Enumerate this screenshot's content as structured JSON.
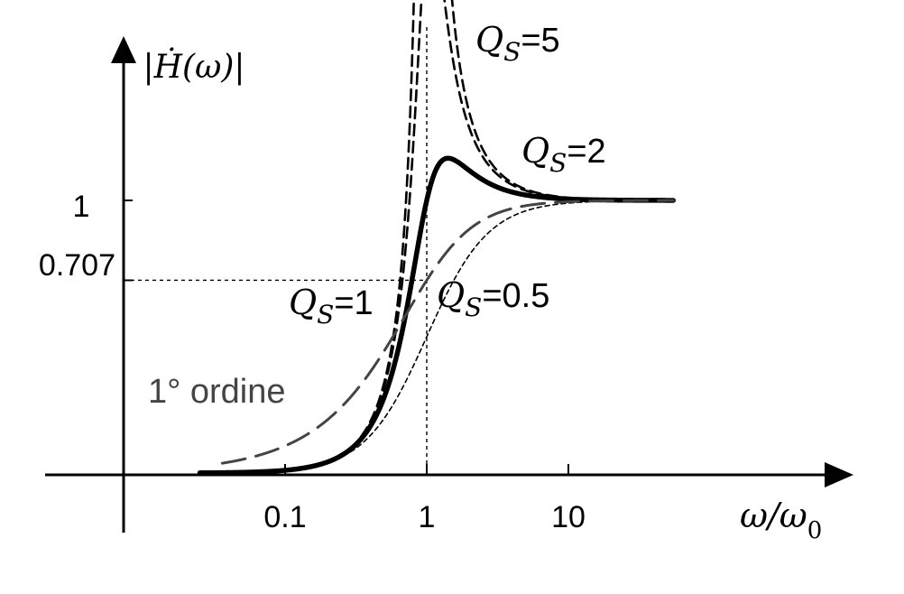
{
  "chart_data": {
    "type": "line",
    "x_scale": "log",
    "xlim": [
      0.02,
      100
    ],
    "ylim": [
      0,
      1.4
    ],
    "xticks": [
      {
        "value": 0.1,
        "label": "0.1"
      },
      {
        "value": 1,
        "label": "1"
      },
      {
        "value": 10,
        "label": "10"
      }
    ],
    "yticks": [
      {
        "value": 1,
        "label": "1"
      },
      {
        "value": 0.707,
        "label": "0.707"
      }
    ],
    "ylabel": "|Ḣ(ω)|",
    "xlabel_main": "ω/ω",
    "xlabel_sub": "0",
    "reference_lines": [
      {
        "axis": "y",
        "value": 0.707
      },
      {
        "axis": "x",
        "value": 1
      }
    ],
    "series": [
      {
        "name": "Q_S=5",
        "Q": 5,
        "kind": "second_order",
        "style": "dashed-short",
        "color": "#000000",
        "label_var": "Q",
        "label_sub": "S",
        "label_val": "=5",
        "label_at_x": 2.2
      },
      {
        "name": "Q_S=2",
        "Q": 2,
        "kind": "second_order",
        "style": "dashed-short",
        "color": "#000000",
        "label_var": "Q",
        "label_sub": "S",
        "label_val": "=2",
        "label_at_x": 5.5
      },
      {
        "name": "Q_S=1",
        "Q": 1,
        "kind": "second_order",
        "style": "solid-thick",
        "color": "#000000",
        "label_var": "Q",
        "label_sub": "S",
        "label_val": "=1",
        "label_at_x": 0.25
      },
      {
        "name": "Q_S=0.5",
        "Q": 0.5,
        "kind": "second_order",
        "style": "dashed-fine",
        "color": "#000000",
        "label_var": "Q",
        "label_sub": "S",
        "label_val": "=0.5",
        "label_at_x": 1.05
      },
      {
        "name": "1° ordine",
        "kind": "first_order",
        "style": "dashed-long",
        "color": "#444444",
        "label_text": "1° ordine",
        "label_at_x": 0.04
      }
    ]
  }
}
